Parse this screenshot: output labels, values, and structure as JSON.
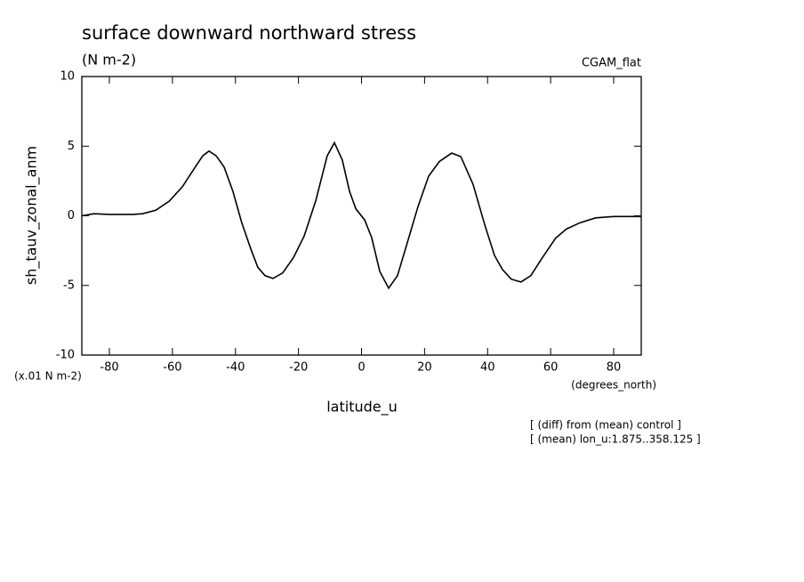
{
  "chart_data": {
    "type": "line",
    "title": "surface downward northward stress",
    "subtitle": "(N m-2)",
    "dataset": "CGAM_flat",
    "y_label": "sh_tauv_zonal_anm",
    "y_units": "(x.01 N m-2)",
    "x_label": "latitude_u",
    "x_units": "(degrees_north)",
    "notes": [
      "[ (diff) from (mean) control ]",
      "[ (mean) lon_u:1.875..358.125 ]"
    ],
    "x": [
      -88.75,
      -85,
      -80,
      -72.4,
      -69.5,
      -65.3,
      -61,
      -56.8,
      -53.2,
      -50.4,
      -48.4,
      -46.1,
      -43.6,
      -40.8,
      -38,
      -35.1,
      -32.9,
      -30.6,
      -28.1,
      -25,
      -21.6,
      -18.2,
      -14.5,
      -10.9,
      -8.6,
      -6.1,
      -3.8,
      -1.8,
      1,
      3.2,
      5.8,
      8.6,
      11.4,
      14.5,
      17.9,
      21.3,
      24.7,
      28.6,
      31.5,
      35.4,
      39.1,
      42.2,
      44.7,
      47.5,
      50.6,
      53.7,
      57.4,
      61.6,
      65,
      69.3,
      74.3,
      80,
      88.75
    ],
    "series": [
      {
        "color": "#000000",
        "values": [
          0,
          0.15,
          0.1,
          0.1,
          0.15,
          0.4,
          1.05,
          2.1,
          3.35,
          4.3,
          4.65,
          4.3,
          3.5,
          1.75,
          -0.5,
          -2.4,
          -3.7,
          -4.3,
          -4.5,
          -4.1,
          -3,
          -1.45,
          1.1,
          4.3,
          5.25,
          4,
          1.75,
          0.5,
          -0.3,
          -1.55,
          -4,
          -5.2,
          -4.3,
          -1.95,
          0.65,
          2.85,
          3.9,
          4.5,
          4.25,
          2.25,
          -0.65,
          -2.85,
          -3.85,
          -4.55,
          -4.75,
          -4.3,
          -3,
          -1.6,
          -0.95,
          -0.5,
          -0.15,
          -0.05,
          -0.05
        ]
      }
    ],
    "xlim": [
      -88.75,
      88.75
    ],
    "xticks": [
      -80,
      -60,
      -40,
      -20,
      0,
      20,
      40,
      60,
      80
    ],
    "ylim": [
      -10,
      10
    ],
    "yticks": [
      -10,
      -5,
      0,
      5,
      10
    ]
  }
}
